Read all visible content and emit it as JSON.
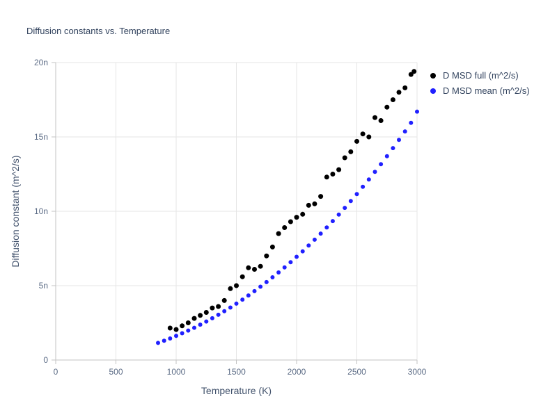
{
  "chart_data": {
    "type": "scatter",
    "title": "Diffusion constants vs. Temperature",
    "xlabel": "Temperature (K)",
    "ylabel": "Diffusion constant (m^2/s)",
    "xlim": [
      0,
      3000
    ],
    "ylim": [
      0,
      20
    ],
    "y_unit": "n (1e-9 m^2/s)",
    "grid": true,
    "legend_position": "top-right-outside",
    "xticks": [
      0,
      500,
      1000,
      1500,
      2000,
      2500,
      3000
    ],
    "xtick_labels": [
      "0",
      "500",
      "1000",
      "1500",
      "2000",
      "2500",
      "3000"
    ],
    "yticks": [
      0,
      5,
      10,
      15,
      20
    ],
    "ytick_labels": [
      "0",
      "5n",
      "10n",
      "15n",
      "20n"
    ],
    "colors": {
      "title": "#32435e",
      "axis_label": "#44546e",
      "tick_label": "#5b6b85",
      "grid": "#e5e5e5",
      "axis": "#c3c3c3",
      "series_full": "#000000",
      "series_mean": "#2020ff"
    },
    "series": [
      {
        "name": "D MSD full (m^2/s)",
        "color": "#000000",
        "marker_radius": 3.5,
        "x": [
          950,
          1000,
          1050,
          1100,
          1150,
          1200,
          1250,
          1300,
          1350,
          1400,
          1450,
          1500,
          1550,
          1600,
          1650,
          1700,
          1750,
          1800,
          1850,
          1900,
          1950,
          2000,
          2050,
          2100,
          2150,
          2200,
          2250,
          2300,
          2350,
          2400,
          2450,
          2500,
          2550,
          2600,
          2650,
          2700,
          2750,
          2800,
          2850,
          2900,
          2950,
          2975
        ],
        "y": [
          2.15,
          2.05,
          2.3,
          2.5,
          2.8,
          3.0,
          3.2,
          3.5,
          3.6,
          4.0,
          4.8,
          5.0,
          5.6,
          6.2,
          6.1,
          6.3,
          7.0,
          7.6,
          8.5,
          8.9,
          9.3,
          9.6,
          9.8,
          10.4,
          10.5,
          11.0,
          12.3,
          12.5,
          12.8,
          13.6,
          14.0,
          14.7,
          15.2,
          15.0,
          16.3,
          16.1,
          17.0,
          17.5,
          18.0,
          18.3,
          19.2,
          19.4
        ]
      },
      {
        "name": "D MSD mean (m^2/s)",
        "color": "#2020ff",
        "marker_radius": 3,
        "x": [
          850,
          900,
          950,
          1000,
          1050,
          1100,
          1150,
          1200,
          1250,
          1300,
          1350,
          1400,
          1450,
          1500,
          1550,
          1600,
          1650,
          1700,
          1750,
          1800,
          1850,
          1900,
          1950,
          2000,
          2050,
          2100,
          2150,
          2200,
          2250,
          2300,
          2350,
          2400,
          2450,
          2500,
          2550,
          2600,
          2650,
          2700,
          2750,
          2800,
          2850,
          2900,
          2950,
          3000
        ],
        "y": [
          1.15,
          1.3,
          1.45,
          1.62,
          1.8,
          1.98,
          2.17,
          2.38,
          2.59,
          2.81,
          3.04,
          3.28,
          3.53,
          3.79,
          4.06,
          4.34,
          4.63,
          4.93,
          5.24,
          5.56,
          5.89,
          6.23,
          6.58,
          6.94,
          7.31,
          7.7,
          8.09,
          8.5,
          8.91,
          9.34,
          9.78,
          10.23,
          10.69,
          11.16,
          11.65,
          12.14,
          12.65,
          13.17,
          13.7,
          14.25,
          14.8,
          15.37,
          15.95,
          16.7
        ]
      }
    ]
  }
}
